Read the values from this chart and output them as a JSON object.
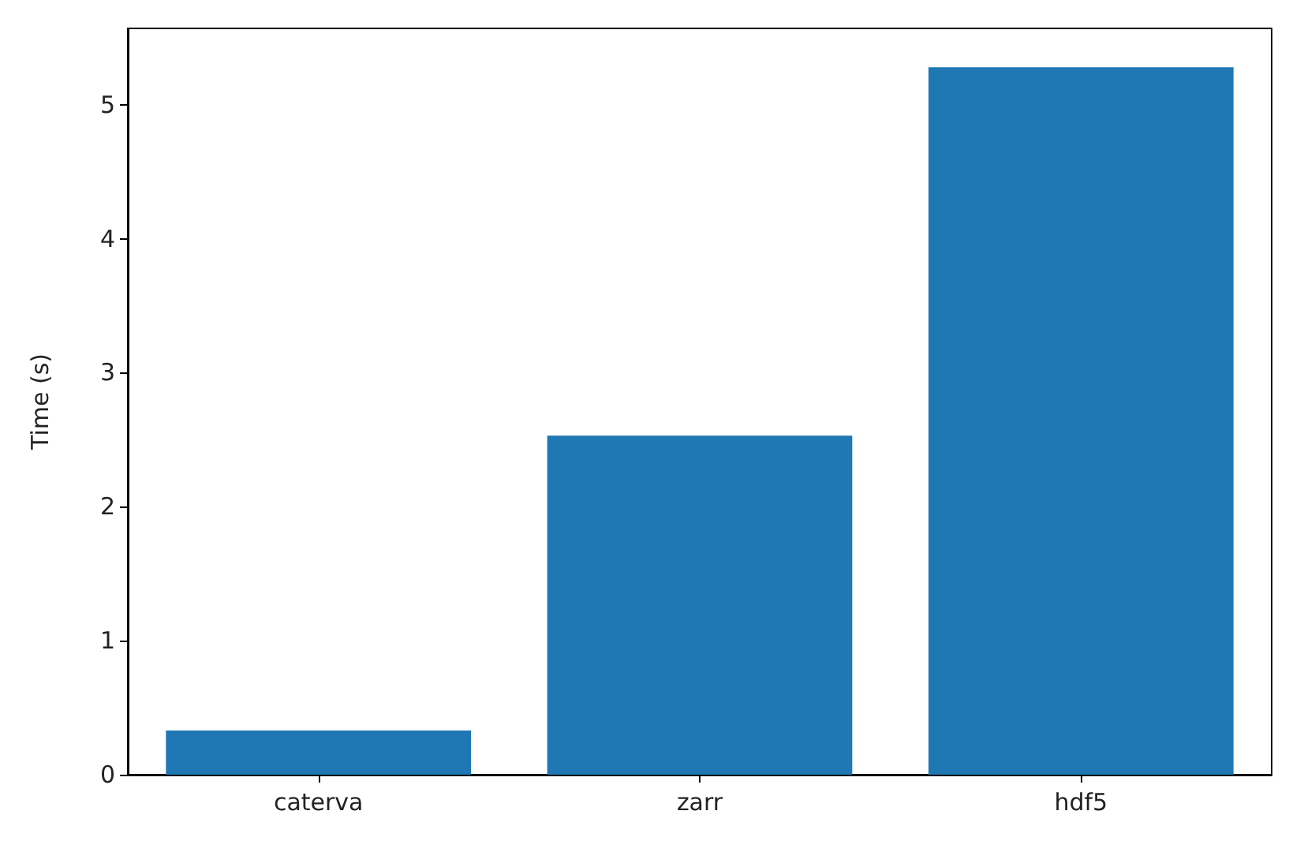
{
  "chart_data": {
    "type": "bar",
    "ylabel": "Time (s)",
    "categories": [
      "caterva",
      "zarr",
      "hdf5"
    ],
    "values": [
      0.33,
      2.53,
      5.28
    ],
    "color": "#1f77b4",
    "ylim": [
      0,
      5.57
    ],
    "yticks": [
      0,
      1,
      2,
      3,
      4,
      5
    ],
    "grid": false
  }
}
